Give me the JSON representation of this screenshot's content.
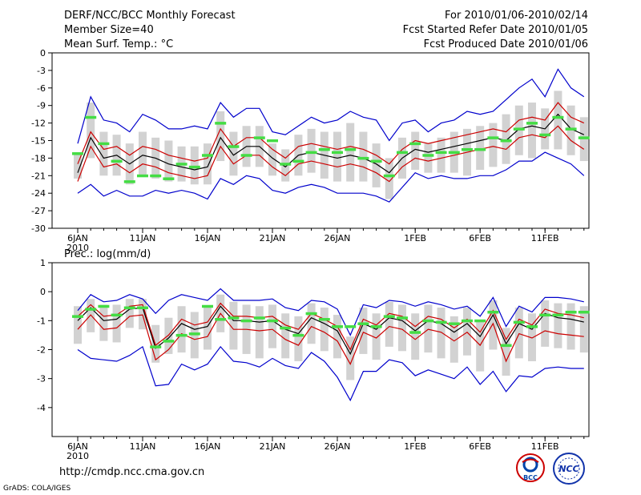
{
  "header": {
    "title": "DERF/NCC/BCC Monthly Forecast",
    "member_size": "Member Size=40",
    "period": "For 2010/01/06-2010/02/14",
    "refer_date": "Fcst Started Refer Date 2010/01/05",
    "produced_date": "Fcst Produced Date 2010/01/06"
  },
  "footer": {
    "url": "http://cmdp.ncc.cma.gov.cn",
    "credit": "GrADS: COLA/IGES"
  },
  "logos": [
    "BCC",
    "NCC"
  ],
  "colors": {
    "ensemble_mean": "#000000",
    "spread": "#cc0000",
    "envelope": "#0000cc",
    "quartile_bar": "#d2d2d2",
    "observed_marker": "#44dd44"
  },
  "chart_data": [
    {
      "type": "line",
      "title": "Mean Surf. Temp.: °C",
      "xlabel": "",
      "ylabel": "°C",
      "ylim": [
        -30,
        0
      ],
      "yticks": [
        "0",
        "-3",
        "-6",
        "-9",
        "-12",
        "-15",
        "-18",
        "-21",
        "-24",
        "-27",
        "-30"
      ],
      "x_tick_labels": [
        "6JAN",
        "11JAN",
        "16JAN",
        "21JAN",
        "26JAN",
        "1FEB",
        "6FEB",
        "11FEB"
      ],
      "x_tick_days": [
        1,
        6,
        11,
        16,
        21,
        27,
        32,
        37
      ],
      "year_label": "2010",
      "days": [
        1,
        2,
        3,
        4,
        5,
        6,
        7,
        8,
        9,
        10,
        11,
        12,
        13,
        14,
        15,
        16,
        17,
        18,
        19,
        20,
        21,
        22,
        23,
        24,
        25,
        26,
        27,
        28,
        29,
        30,
        31,
        32,
        33,
        34,
        35,
        36,
        37,
        38,
        39,
        40
      ],
      "series": [
        {
          "name": "ensemble-mean",
          "values": [
            -20.5,
            -14.5,
            -18.0,
            -17.5,
            -19.0,
            -17.5,
            -18.0,
            -19.0,
            -19.5,
            -20.0,
            -19.5,
            -14.5,
            -17.5,
            -16.0,
            -16.0,
            -18.0,
            -19.5,
            -17.5,
            -17.0,
            -17.5,
            -18.0,
            -17.5,
            -18.0,
            -19.0,
            -20.5,
            -18.0,
            -16.5,
            -17.0,
            -16.5,
            -16.0,
            -15.5,
            -15.0,
            -14.5,
            -15.0,
            -13.0,
            -12.5,
            -13.0,
            -10.5,
            -13.0,
            -14.0
          ]
        },
        {
          "name": "upper-spread",
          "values": [
            -19.0,
            -13.5,
            -16.5,
            -16.0,
            -17.5,
            -16.0,
            -16.5,
            -17.5,
            -18.0,
            -18.5,
            -18.0,
            -13.0,
            -16.0,
            -14.5,
            -14.5,
            -16.5,
            -18.0,
            -16.0,
            -15.5,
            -16.0,
            -16.5,
            -16.0,
            -16.5,
            -17.5,
            -19.0,
            -16.5,
            -15.0,
            -15.5,
            -15.0,
            -14.5,
            -14.0,
            -13.5,
            -13.0,
            -13.5,
            -11.5,
            -11.0,
            -11.5,
            -8.5,
            -11.0,
            -12.0
          ]
        },
        {
          "name": "lower-spread",
          "values": [
            -22.0,
            -16.0,
            -19.5,
            -19.0,
            -20.5,
            -19.0,
            -19.5,
            -20.5,
            -21.0,
            -21.5,
            -21.0,
            -16.0,
            -19.0,
            -17.5,
            -17.5,
            -19.5,
            -21.0,
            -19.0,
            -18.5,
            -19.0,
            -19.5,
            -19.0,
            -19.5,
            -20.5,
            -22.0,
            -19.5,
            -18.0,
            -18.5,
            -18.0,
            -17.5,
            -17.0,
            -16.5,
            -16.0,
            -16.5,
            -14.5,
            -14.0,
            -14.5,
            -12.5,
            -15.0,
            -16.5
          ]
        },
        {
          "name": "maximum",
          "values": [
            -15.5,
            -7.5,
            -11.5,
            -12.0,
            -13.5,
            -10.5,
            -11.5,
            -13.0,
            -13.0,
            -12.5,
            -13.0,
            -8.5,
            -11.0,
            -9.5,
            -9.5,
            -13.5,
            -14.0,
            -12.5,
            -11.0,
            -12.0,
            -11.5,
            -10.0,
            -11.0,
            -11.5,
            -15.0,
            -12.0,
            -11.5,
            -13.5,
            -12.0,
            -11.5,
            -10.0,
            -10.5,
            -10.0,
            -8.0,
            -6.0,
            -4.5,
            -7.5,
            -2.8,
            -6.0,
            -7.5
          ]
        },
        {
          "name": "minimum",
          "values": [
            -24.0,
            -22.5,
            -24.5,
            -23.5,
            -24.5,
            -24.5,
            -23.5,
            -24.0,
            -23.5,
            -24.0,
            -25.0,
            -21.5,
            -22.5,
            -21.0,
            -21.5,
            -23.5,
            -24.0,
            -23.0,
            -22.5,
            -23.0,
            -24.0,
            -24.0,
            -24.0,
            -24.5,
            -25.5,
            -23.0,
            -20.5,
            -21.5,
            -21.0,
            -21.5,
            -21.5,
            -21.0,
            -21.0,
            -20.0,
            -18.5,
            -18.5,
            -17.0,
            -18.0,
            -19.0,
            -21.0
          ]
        },
        {
          "name": "quartile-high",
          "values": [
            -17.0,
            -8.5,
            -13.5,
            -14.0,
            -15.5,
            -13.5,
            -14.5,
            -15.0,
            -16.0,
            -16.0,
            -15.5,
            -10.0,
            -13.5,
            -12.5,
            -12.5,
            -15.5,
            -16.5,
            -14.0,
            -13.0,
            -13.5,
            -13.5,
            -12.0,
            -13.5,
            -15.5,
            -18.0,
            -14.5,
            -13.5,
            -15.5,
            -14.5,
            -13.5,
            -13.0,
            -12.5,
            -12.0,
            -10.5,
            -9.0,
            -8.5,
            -9.5,
            -6.5,
            -9.0,
            -11.0
          ]
        },
        {
          "name": "quartile-low",
          "values": [
            -21.5,
            -18.0,
            -21.0,
            -21.0,
            -22.5,
            -21.0,
            -21.5,
            -22.0,
            -22.0,
            -22.5,
            -22.5,
            -18.5,
            -21.0,
            -19.5,
            -19.5,
            -21.0,
            -22.0,
            -21.0,
            -20.5,
            -21.5,
            -22.0,
            -22.0,
            -22.0,
            -23.0,
            -25.0,
            -21.5,
            -20.0,
            -20.5,
            -20.5,
            -20.5,
            -21.0,
            -20.0,
            -19.5,
            -19.0,
            -17.5,
            -18.0,
            -16.5,
            -16.5,
            -17.5,
            -18.5
          ]
        },
        {
          "name": "observed",
          "values": [
            -17.2,
            -11.0,
            -15.5,
            -18.5,
            -22.0,
            -21.0,
            -21.0,
            -21.5,
            -19.0,
            -19.5,
            -17.5,
            -12.0,
            -16.0,
            -17.5,
            -14.5,
            -15.0,
            -19.0,
            -18.5,
            -17.0,
            -16.5,
            -17.0,
            -16.5,
            -18.0,
            -18.5,
            -21.0,
            -17.0,
            -15.5,
            -17.5,
            -17.0,
            -17.0,
            -16.5,
            -16.5,
            -14.5,
            -15.0,
            -13.0,
            -12.0,
            -14.0,
            -11.0,
            -13.0,
            -14.5
          ]
        }
      ]
    },
    {
      "type": "line",
      "title": "Prec.: log(mm/d)",
      "xlabel": "",
      "ylabel": "log(mm/d)",
      "ylim": [
        -5,
        1
      ],
      "yticks": [
        "1",
        "0",
        "-1",
        "-2",
        "-3",
        "-4"
      ],
      "x_tick_labels": [
        "6JAN",
        "11JAN",
        "16JAN",
        "21JAN",
        "26JAN",
        "1FEB",
        "6FEB",
        "11FEB"
      ],
      "x_tick_days": [
        1,
        6,
        11,
        16,
        21,
        27,
        32,
        37
      ],
      "year_label": "2010",
      "days": [
        1,
        2,
        3,
        4,
        5,
        6,
        7,
        8,
        9,
        10,
        11,
        12,
        13,
        14,
        15,
        16,
        17,
        18,
        19,
        20,
        21,
        22,
        23,
        24,
        25,
        26,
        27,
        28,
        29,
        30,
        31,
        32,
        33,
        34,
        35,
        36,
        37,
        38,
        39,
        40
      ],
      "series": [
        {
          "name": "ensemble-mean",
          "values": [
            -1.0,
            -0.55,
            -1.0,
            -0.95,
            -0.6,
            -0.55,
            -1.95,
            -1.6,
            -1.1,
            -1.3,
            -1.2,
            -0.5,
            -1.0,
            -1.0,
            -1.05,
            -1.0,
            -1.3,
            -1.45,
            -0.9,
            -1.1,
            -1.35,
            -2.15,
            -1.1,
            -1.3,
            -0.9,
            -1.0,
            -1.35,
            -1.0,
            -1.1,
            -1.4,
            -1.1,
            -1.55,
            -0.8,
            -1.8,
            -1.1,
            -1.3,
            -0.75,
            -0.9,
            -0.95,
            -1.05
          ]
        },
        {
          "name": "upper-spread",
          "values": [
            -0.85,
            -0.45,
            -0.85,
            -0.8,
            -0.5,
            -0.45,
            -1.85,
            -1.5,
            -0.95,
            -1.15,
            -1.05,
            -0.4,
            -0.85,
            -0.85,
            -0.9,
            -0.85,
            -1.15,
            -1.3,
            -0.75,
            -0.95,
            -1.2,
            -2.0,
            -0.95,
            -1.15,
            -0.75,
            -0.85,
            -1.2,
            -0.85,
            -0.95,
            -1.25,
            -0.95,
            -1.4,
            -0.65,
            -1.65,
            -0.95,
            -1.15,
            -0.6,
            -0.75,
            -0.8,
            -0.9
          ]
        },
        {
          "name": "lower-spread",
          "values": [
            -1.3,
            -0.8,
            -1.3,
            -1.25,
            -0.85,
            -0.8,
            -2.35,
            -2.0,
            -1.45,
            -1.65,
            -1.55,
            -0.75,
            -1.3,
            -1.3,
            -1.35,
            -1.3,
            -1.65,
            -1.85,
            -1.2,
            -1.4,
            -1.7,
            -2.5,
            -1.4,
            -1.6,
            -1.2,
            -1.3,
            -1.65,
            -1.3,
            -1.4,
            -1.7,
            -1.4,
            -1.85,
            -1.1,
            -2.4,
            -1.45,
            -1.6,
            -1.35,
            -1.45,
            -1.5,
            -1.55
          ]
        },
        {
          "name": "maximum",
          "values": [
            -0.65,
            -0.1,
            -0.35,
            -0.3,
            -0.1,
            -0.25,
            -0.75,
            -0.3,
            -0.1,
            -0.2,
            -0.3,
            0.1,
            -0.3,
            -0.3,
            -0.3,
            -0.25,
            -0.55,
            -0.65,
            -0.3,
            -0.35,
            -0.6,
            -1.5,
            -0.45,
            -0.55,
            -0.3,
            -0.35,
            -0.5,
            -0.35,
            -0.45,
            -0.6,
            -0.5,
            -0.85,
            -0.2,
            -1.2,
            -0.5,
            -0.7,
            -0.2,
            -0.2,
            -0.25,
            -0.35
          ]
        },
        {
          "name": "minimum",
          "values": [
            -2.0,
            -2.3,
            -2.35,
            -2.4,
            -2.2,
            -1.9,
            -3.25,
            -3.2,
            -2.5,
            -2.7,
            -2.5,
            -1.9,
            -2.4,
            -2.45,
            -2.6,
            -2.3,
            -2.55,
            -2.65,
            -2.1,
            -2.4,
            -2.95,
            -3.75,
            -2.75,
            -2.75,
            -2.35,
            -2.45,
            -2.9,
            -2.7,
            -2.85,
            -3.0,
            -2.6,
            -3.2,
            -2.75,
            -3.45,
            -2.9,
            -2.95,
            -2.65,
            -2.6,
            -2.65,
            -2.65
          ]
        },
        {
          "name": "quartile-high",
          "values": [
            -0.5,
            -0.25,
            -0.45,
            -0.45,
            -0.25,
            -0.25,
            -1.15,
            -0.9,
            -0.5,
            -0.7,
            -0.55,
            -0.1,
            -0.35,
            -0.45,
            -0.5,
            -0.45,
            -0.75,
            -0.85,
            -0.4,
            -0.55,
            -0.8,
            -1.55,
            -0.55,
            -0.75,
            -0.35,
            -0.45,
            -0.75,
            -0.45,
            -0.55,
            -0.85,
            -0.55,
            -1.0,
            -0.3,
            -1.25,
            -0.55,
            -0.75,
            -0.3,
            -0.4,
            -0.4,
            -0.5
          ]
        },
        {
          "name": "quartile-low",
          "values": [
            -1.8,
            -1.4,
            -1.7,
            -1.75,
            -1.25,
            -1.3,
            -2.45,
            -2.15,
            -2.1,
            -2.3,
            -2.0,
            -1.4,
            -2.0,
            -2.15,
            -2.3,
            -1.95,
            -2.3,
            -2.4,
            -1.8,
            -2.05,
            -2.3,
            -3.05,
            -2.15,
            -2.35,
            -1.9,
            -2.05,
            -2.35,
            -2.1,
            -2.3,
            -2.45,
            -2.2,
            -2.75,
            -2.0,
            -2.9,
            -2.3,
            -2.4,
            -1.9,
            -1.95,
            -2.0,
            -2.1
          ]
        },
        {
          "name": "observed",
          "values": [
            -0.85,
            -0.6,
            -0.5,
            -0.8,
            -0.55,
            -0.55,
            -1.9,
            -1.7,
            -1.5,
            -1.45,
            -0.5,
            -0.95,
            -0.9,
            -1.0,
            -0.9,
            -1.0,
            -1.25,
            -1.5,
            -0.75,
            -0.95,
            -1.2,
            -1.2,
            -1.1,
            -1.2,
            -0.85,
            -0.9,
            -1.4,
            -1.0,
            -1.05,
            -1.1,
            -1.0,
            -1.0,
            -0.7,
            -1.85,
            -1.05,
            -1.2,
            -0.8,
            -0.8,
            -0.7,
            -0.7
          ]
        }
      ]
    }
  ]
}
